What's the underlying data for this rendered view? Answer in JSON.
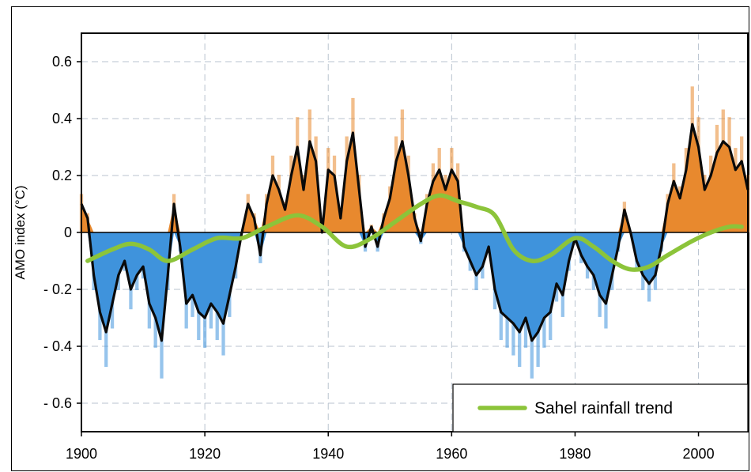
{
  "chart_data": {
    "type": "area",
    "title": "",
    "xlabel": "",
    "ylabel": "AMO index (°C)",
    "xlim": [
      1900,
      2008
    ],
    "ylim": [
      -0.7,
      0.7
    ],
    "x_ticks": [
      "1900",
      "1920",
      "1940",
      "1960",
      "1980",
      "2000"
    ],
    "y_ticks": [
      "0.6",
      "0.4",
      "0.2",
      "0",
      "- 0.2",
      "- 0.4",
      "- 0.6"
    ],
    "grid": true,
    "legend_position": "bottom-right",
    "colors": {
      "positive": "#e8892e",
      "negative": "#3f93dc",
      "smoothed": "#0a0a0a",
      "trend": "#8cc43a"
    },
    "series": [
      {
        "name": "",
        "role": "smoothed AMO index",
        "x": [
          1900,
          1901,
          1902,
          1903,
          1904,
          1905,
          1906,
          1907,
          1908,
          1909,
          1910,
          1911,
          1912,
          1913,
          1914,
          1915,
          1916,
          1917,
          1918,
          1919,
          1920,
          1921,
          1922,
          1923,
          1924,
          1925,
          1926,
          1927,
          1928,
          1929,
          1930,
          1931,
          1932,
          1933,
          1934,
          1935,
          1936,
          1937,
          1938,
          1939,
          1940,
          1941,
          1942,
          1943,
          1944,
          1945,
          1946,
          1947,
          1948,
          1949,
          1950,
          1951,
          1952,
          1953,
          1954,
          1955,
          1956,
          1957,
          1958,
          1959,
          1960,
          1961,
          1962,
          1963,
          1964,
          1965,
          1966,
          1967,
          1968,
          1969,
          1970,
          1971,
          1972,
          1973,
          1974,
          1975,
          1976,
          1977,
          1978,
          1979,
          1980,
          1981,
          1982,
          1983,
          1984,
          1985,
          1986,
          1987,
          1988,
          1989,
          1990,
          1991,
          1992,
          1993,
          1994,
          1995,
          1996,
          1997,
          1998,
          1999,
          2000,
          2001,
          2002,
          2003,
          2004,
          2005,
          2006,
          2007,
          2008
        ],
        "y": [
          0.1,
          0.05,
          -0.15,
          -0.28,
          -0.35,
          -0.25,
          -0.15,
          -0.1,
          -0.2,
          -0.15,
          -0.12,
          -0.25,
          -0.3,
          -0.38,
          -0.15,
          0.1,
          -0.05,
          -0.25,
          -0.22,
          -0.28,
          -0.3,
          -0.25,
          -0.28,
          -0.32,
          -0.22,
          -0.12,
          0.0,
          0.1,
          0.05,
          -0.08,
          0.1,
          0.2,
          0.15,
          0.08,
          0.2,
          0.3,
          0.15,
          0.32,
          0.25,
          0.0,
          0.22,
          0.2,
          0.05,
          0.25,
          0.35,
          0.15,
          -0.05,
          0.02,
          -0.05,
          0.05,
          0.12,
          0.25,
          0.32,
          0.2,
          0.05,
          -0.03,
          0.1,
          0.18,
          0.22,
          0.15,
          0.22,
          0.18,
          -0.05,
          -0.1,
          -0.15,
          -0.12,
          -0.05,
          -0.2,
          -0.28,
          -0.3,
          -0.32,
          -0.35,
          -0.3,
          -0.38,
          -0.35,
          -0.3,
          -0.28,
          -0.18,
          -0.22,
          -0.1,
          -0.02,
          -0.08,
          -0.12,
          -0.15,
          -0.22,
          -0.25,
          -0.15,
          -0.05,
          0.08,
          0.0,
          -0.1,
          -0.15,
          -0.18,
          -0.15,
          -0.05,
          0.1,
          0.18,
          0.12,
          0.22,
          0.38,
          0.3,
          0.15,
          0.2,
          0.28,
          0.32,
          0.3,
          0.22,
          0.25,
          0.15
        ]
      },
      {
        "name": "Sahel rainfall trend",
        "x": [
          1901,
          1905,
          1908,
          1911,
          1914,
          1918,
          1922,
          1926,
          1930,
          1935,
          1939,
          1943,
          1947,
          1951,
          1955,
          1958,
          1961,
          1964,
          1967,
          1970,
          1973,
          1976,
          1980,
          1983,
          1986,
          1989,
          1992,
          1995,
          1999,
          2002,
          2005,
          2007
        ],
        "y": [
          -0.1,
          -0.06,
          -0.04,
          -0.06,
          -0.1,
          -0.06,
          -0.02,
          -0.02,
          0.02,
          0.06,
          0.02,
          -0.05,
          -0.02,
          0.04,
          0.1,
          0.13,
          0.11,
          0.09,
          0.06,
          -0.06,
          -0.1,
          -0.08,
          -0.02,
          -0.05,
          -0.1,
          -0.13,
          -0.12,
          -0.08,
          -0.03,
          0.0,
          0.02,
          0.02
        ]
      }
    ]
  }
}
